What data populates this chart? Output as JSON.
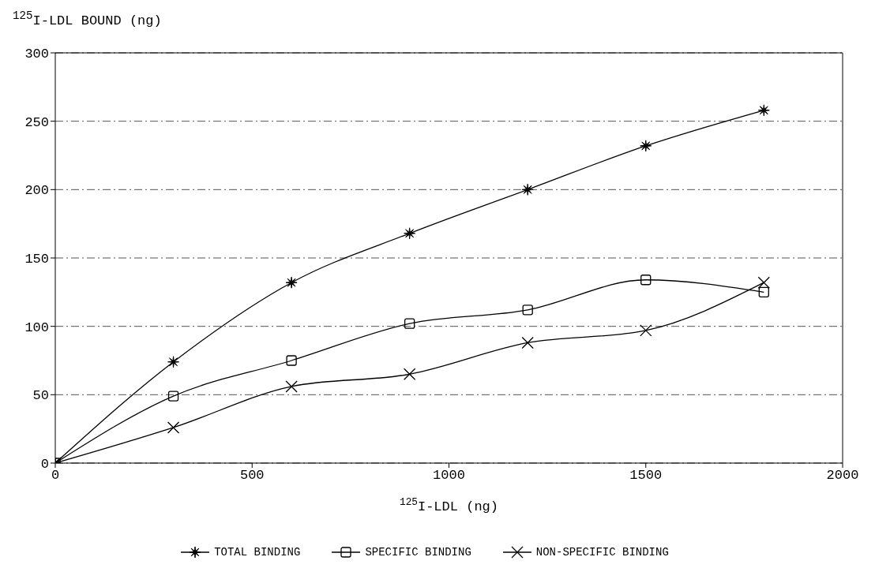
{
  "chart_data": {
    "type": "line",
    "xlabel": "$^{125}$I-LDL (ng)",
    "ylabel": "$^{125}$I-LDL BOUND (ng)",
    "x": [
      0,
      300,
      600,
      900,
      1200,
      1500,
      1800
    ],
    "series": [
      {
        "name": "TOTAL BINDING",
        "color": "#000000",
        "marker": "star",
        "values": [
          0,
          74,
          132,
          168,
          200,
          232,
          258
        ]
      },
      {
        "name": "SPECIFIC BINDING",
        "color": "#000000",
        "marker": "square",
        "values": [
          0,
          49,
          75,
          102,
          112,
          134,
          125
        ]
      },
      {
        "name": "NON-SPECIFIC BINDING",
        "color": "#000000",
        "marker": "cross",
        "values": [
          0,
          26,
          56,
          65,
          88,
          97,
          132
        ]
      }
    ],
    "xlim": [
      0,
      2000
    ],
    "xticks": [
      0,
      500,
      1000,
      1500,
      2000
    ],
    "ylim": [
      0,
      300
    ],
    "yticks": [
      0,
      50,
      100,
      150,
      200,
      250,
      300
    ],
    "grid": "y",
    "legend": "bottom",
    "line_style": "solid"
  }
}
